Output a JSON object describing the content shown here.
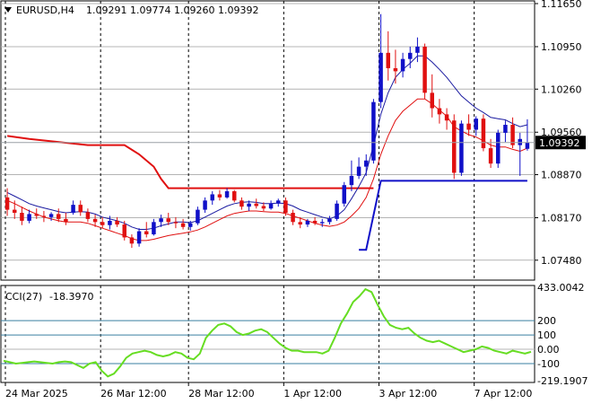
{
  "header": {
    "symbol": "EURUSD,H4",
    "ohlc": "1.09291 1.09774 1.09260 1.09392",
    "triangle_icon": "triangle-down-icon"
  },
  "colors": {
    "bull": "#1010c8",
    "bear": "#e01010",
    "ma_fast": "#1a1aa0",
    "ma_slow": "#e01010",
    "trail": "#e01010",
    "cci": "#66dd22",
    "level": "#3a7fa0",
    "grid": "#b4b4b4"
  },
  "chart_data": [
    {
      "type": "candlestick",
      "title": "EURUSD,H4",
      "y_ticks": [
        "1.11650",
        "1.10950",
        "1.10260",
        "1.09560",
        "1.08870",
        "1.08170",
        "1.07480"
      ],
      "ylim": [
        1.072,
        1.1165
      ],
      "x_ticks": [
        "24 Mar 2025",
        "26 Mar 12:00",
        "28 Mar 12:00",
        "1 Apr 12:00",
        "3 Apr 12:00",
        "7 Apr 12:00"
      ],
      "current_price": "1.09392",
      "candles": [
        [
          1.085,
          1.0865,
          1.082,
          1.083
        ],
        [
          1.083,
          1.0845,
          1.0815,
          1.0825
        ],
        [
          1.0825,
          1.0835,
          1.0805,
          1.0812
        ],
        [
          1.0812,
          1.083,
          1.0808,
          1.0823
        ],
        [
          1.0823,
          1.0832,
          1.0815,
          1.082
        ],
        [
          1.082,
          1.0828,
          1.081,
          1.0818
        ],
        [
          1.0818,
          1.0826,
          1.0812,
          1.0823
        ],
        [
          1.0823,
          1.0832,
          1.081,
          1.0815
        ],
        [
          1.0815,
          1.0825,
          1.0805,
          1.081
        ],
        [
          1.0825,
          1.0845,
          1.0822,
          1.0838
        ],
        [
          1.0838,
          1.0845,
          1.082,
          1.0826
        ],
        [
          1.0826,
          1.0832,
          1.081,
          1.0815
        ],
        [
          1.0815,
          1.0822,
          1.0802,
          1.081
        ],
        [
          1.081,
          1.0818,
          1.08,
          1.0805
        ],
        [
          1.0805,
          1.082,
          1.0798,
          1.0812
        ],
        [
          1.0812,
          1.0818,
          1.0802,
          1.0806
        ],
        [
          1.0806,
          1.0812,
          1.078,
          1.0785
        ],
        [
          1.0785,
          1.079,
          1.0768,
          1.0775
        ],
        [
          1.0775,
          1.08,
          1.077,
          1.0795
        ],
        [
          1.0795,
          1.081,
          1.0785,
          1.079
        ],
        [
          1.079,
          1.0815,
          1.0788,
          1.081
        ],
        [
          1.081,
          1.0822,
          1.0802,
          1.0816
        ],
        [
          1.0816,
          1.0825,
          1.0805,
          1.081
        ],
        [
          1.081,
          1.0818,
          1.08,
          1.0808
        ],
        [
          1.0808,
          1.0815,
          1.0798,
          1.0802
        ],
        [
          1.0802,
          1.0812,
          1.0796,
          1.0808
        ],
        [
          1.0808,
          1.0835,
          1.0805,
          1.083
        ],
        [
          1.083,
          1.085,
          1.0825,
          1.0845
        ],
        [
          1.0845,
          1.086,
          1.0838,
          1.0855
        ],
        [
          1.0855,
          1.0862,
          1.0845,
          1.085
        ],
        [
          1.085,
          1.0865,
          1.0848,
          1.086
        ],
        [
          1.086,
          1.0862,
          1.0842,
          1.0845
        ],
        [
          1.0845,
          1.085,
          1.083,
          1.0835
        ],
        [
          1.0835,
          1.0845,
          1.0828,
          1.084
        ],
        [
          1.084,
          1.0848,
          1.0832,
          1.0836
        ],
        [
          1.0836,
          1.0842,
          1.0828,
          1.0832
        ],
        [
          1.0832,
          1.0845,
          1.083,
          1.084
        ],
        [
          1.084,
          1.0848,
          1.0835,
          1.0845
        ],
        [
          1.0845,
          1.085,
          1.082,
          1.0825
        ],
        [
          1.0825,
          1.083,
          1.0805,
          1.081
        ],
        [
          1.081,
          1.0818,
          1.08,
          1.0806
        ],
        [
          1.0806,
          1.0815,
          1.0802,
          1.0812
        ],
        [
          1.0812,
          1.0818,
          1.0805,
          1.0808
        ],
        [
          1.0808,
          1.0815,
          1.0802,
          1.081
        ],
        [
          1.081,
          1.082,
          1.0806,
          1.0815
        ],
        [
          1.0815,
          1.0845,
          1.0812,
          1.084
        ],
        [
          1.084,
          1.0875,
          1.0835,
          1.087
        ],
        [
          1.087,
          1.091,
          1.086,
          1.0885
        ],
        [
          1.0885,
          1.0915,
          1.088,
          1.09
        ],
        [
          1.09,
          1.092,
          1.0885,
          1.091
        ],
        [
          1.091,
          1.101,
          1.0905,
          1.1005
        ],
        [
          1.1005,
          1.1148,
          1.0995,
          1.1085
        ],
        [
          1.1085,
          1.112,
          1.104,
          1.106
        ],
        [
          1.106,
          1.109,
          1.1035,
          1.1055
        ],
        [
          1.1055,
          1.1085,
          1.1045,
          1.1075
        ],
        [
          1.1075,
          1.1095,
          1.106,
          1.1085
        ],
        [
          1.1085,
          1.111,
          1.107,
          1.1095
        ],
        [
          1.1095,
          1.11,
          1.101,
          1.102
        ],
        [
          1.102,
          1.105,
          1.098,
          1.0995
        ],
        [
          1.0995,
          1.101,
          1.097,
          1.0985
        ],
        [
          1.0985,
          1.0995,
          1.096,
          1.0975
        ],
        [
          1.0975,
          1.0985,
          1.088,
          1.089
        ],
        [
          1.089,
          1.0975,
          1.0885,
          1.097
        ],
        [
          1.097,
          1.0985,
          1.095,
          1.096
        ],
        [
          1.096,
          1.0982,
          1.095,
          1.0978
        ],
        [
          1.0978,
          1.0985,
          1.0925,
          1.093
        ],
        [
          1.093,
          1.0945,
          1.0898,
          1.0905
        ],
        [
          1.0905,
          1.096,
          1.0898,
          1.0955
        ],
        [
          1.0955,
          1.0975,
          1.094,
          1.0968
        ],
        [
          1.0968,
          1.098,
          1.093,
          1.0935
        ],
        [
          1.0935,
          1.0955,
          1.0885,
          1.0945
        ],
        [
          1.0929,
          1.0977,
          1.0926,
          1.0939
        ]
      ],
      "ma_fast": [
        1.0858,
        1.0852,
        1.0846,
        1.084,
        1.0836,
        1.0833,
        1.083,
        1.0827,
        1.0825,
        1.0826,
        1.0827,
        1.0826,
        1.0823,
        1.0818,
        1.0815,
        1.0812,
        1.0808,
        1.0802,
        1.0798,
        1.0798,
        1.08,
        1.0804,
        1.0807,
        1.081,
        1.081,
        1.0809,
        1.0812,
        1.0818,
        1.0824,
        1.083,
        1.0836,
        1.084,
        1.0842,
        1.0843,
        1.0842,
        1.084,
        1.084,
        1.0841,
        1.084,
        1.0836,
        1.083,
        1.0826,
        1.0822,
        1.0818,
        1.0815,
        1.082,
        1.083,
        1.0848,
        1.0868,
        1.089,
        1.0935,
        1.0985,
        1.102,
        1.1045,
        1.1058,
        1.1068,
        1.108,
        1.108,
        1.107,
        1.1058,
        1.1045,
        1.103,
        1.1015,
        1.1005,
        1.0995,
        1.0988,
        1.098,
        1.0978,
        1.0976,
        1.097,
        1.0965,
        1.0968
      ],
      "ma_slow": [
        1.0845,
        1.084,
        1.0834,
        1.0828,
        1.0823,
        1.0818,
        1.0815,
        1.0812,
        1.081,
        1.081,
        1.081,
        1.0808,
        1.0804,
        1.08,
        1.0796,
        1.0792,
        1.0788,
        1.0783,
        1.078,
        1.078,
        1.0782,
        1.0785,
        1.0788,
        1.079,
        1.0792,
        1.0794,
        1.0797,
        1.0802,
        1.0808,
        1.0814,
        1.082,
        1.0824,
        1.0826,
        1.0828,
        1.0828,
        1.0827,
        1.0826,
        1.0826,
        1.0824,
        1.082,
        1.0816,
        1.0812,
        1.0808,
        1.0805,
        1.0803,
        1.0805,
        1.081,
        1.082,
        1.0832,
        1.085,
        1.088,
        1.092,
        1.095,
        1.0975,
        1.099,
        1.1,
        1.101,
        1.101,
        1.1002,
        1.0992,
        1.0982,
        1.0965,
        1.0958,
        1.0952,
        1.0948,
        1.0942,
        1.0935,
        1.0932,
        1.0932,
        1.0928,
        1.0925,
        1.093
      ],
      "trail_red": [
        [
          0,
          1.095
        ],
        [
          3,
          1.0945
        ],
        [
          11,
          1.0935
        ],
        [
          16,
          1.0935
        ],
        [
          18,
          1.092
        ],
        [
          20,
          1.09
        ],
        [
          21,
          1.088
        ],
        [
          22,
          1.0865
        ],
        [
          50,
          1.0865
        ]
      ],
      "trail_blue": [
        [
          48,
          1.0765
        ],
        [
          49,
          1.0765
        ],
        [
          51,
          1.0877
        ],
        [
          71,
          1.0877
        ]
      ]
    },
    {
      "type": "line",
      "title": "CCI(27)",
      "value_label": "-18.3970",
      "y_ticks": [
        "433.0042",
        "200",
        "100",
        "0.00",
        "-100",
        "-219.1907"
      ],
      "levels": [
        200,
        100,
        0,
        -100
      ],
      "ylim": [
        -219.19,
        433.0042
      ],
      "values": [
        -80,
        -90,
        -100,
        -95,
        -90,
        -85,
        -90,
        -95,
        -100,
        -90,
        -85,
        -90,
        -110,
        -130,
        -100,
        -90,
        -150,
        -190,
        -170,
        -120,
        -60,
        -30,
        -20,
        -10,
        -20,
        -40,
        -50,
        -40,
        -20,
        -30,
        -60,
        -70,
        -30,
        80,
        130,
        170,
        180,
        160,
        120,
        100,
        110,
        130,
        140,
        120,
        80,
        40,
        10,
        -10,
        -10,
        -20,
        -20,
        -20,
        -30,
        -10,
        80,
        180,
        250,
        330,
        370,
        420,
        400,
        310,
        230,
        170,
        150,
        140,
        150,
        110,
        80,
        60,
        50,
        60,
        40,
        20,
        0,
        -20,
        -10,
        0,
        20,
        10,
        -10,
        -20,
        -30,
        -10,
        -20,
        -30,
        -18
      ]
    }
  ]
}
